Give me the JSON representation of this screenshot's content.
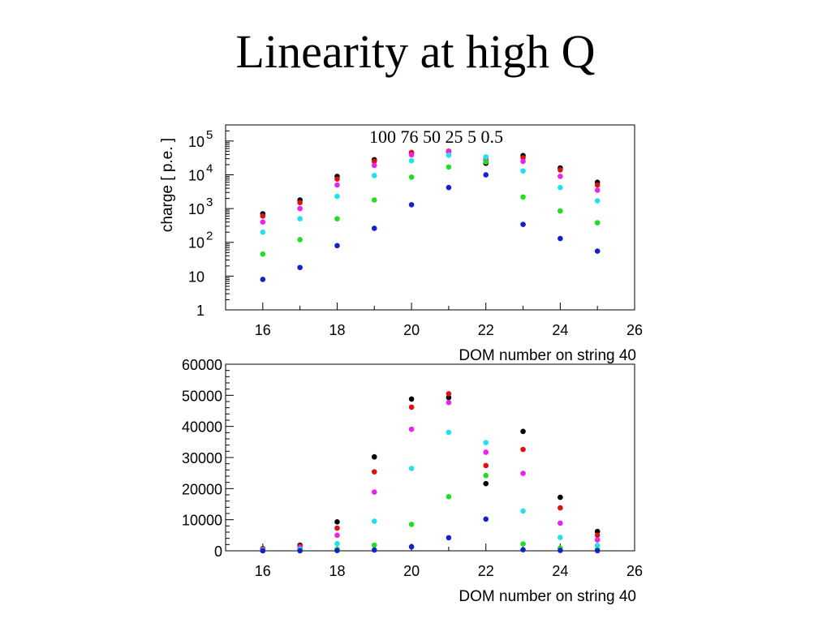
{
  "slide": {
    "title": "Linearity at high Q"
  },
  "chart_data": [
    {
      "type": "scatter",
      "yscale": "log",
      "ylabel": "charge [ p.e. ]",
      "xlabel": "DOM number on string 40",
      "annotation": "100 76 50 25 5 0.5",
      "xlim": [
        15,
        26
      ],
      "ylim": [
        1,
        300000
      ],
      "xticks": [
        "16",
        "18",
        "20",
        "22",
        "24",
        "26"
      ],
      "xtick_values": [
        16,
        18,
        20,
        22,
        24,
        26
      ],
      "ytick_values": [
        1,
        10,
        100,
        1000,
        10000,
        100000
      ],
      "yticks": [
        {
          "base": "1",
          "exp": ""
        },
        {
          "base": "10",
          "exp": ""
        },
        {
          "base": "10",
          "exp": "2"
        },
        {
          "base": "10",
          "exp": "3"
        },
        {
          "base": "10",
          "exp": "4"
        },
        {
          "base": "10",
          "exp": "5"
        }
      ],
      "x": [
        16,
        17,
        18,
        19,
        20,
        21,
        22,
        23,
        24,
        25
      ],
      "series": [
        {
          "color": "#000000",
          "values": [
            700,
            1800,
            9000,
            28000,
            45000,
            48000,
            22000,
            37000,
            16000,
            6000
          ]
        },
        {
          "color": "#dd1111",
          "values": [
            600,
            1500,
            7500,
            25000,
            46000,
            50000,
            27000,
            32000,
            14000,
            5000
          ]
        },
        {
          "color": "#ee22ee",
          "values": [
            400,
            1000,
            5000,
            19000,
            39000,
            48000,
            31000,
            25000,
            9000,
            3500
          ]
        },
        {
          "color": "#22e0f0",
          "values": [
            200,
            500,
            2300,
            9500,
            26000,
            38000,
            34000,
            13000,
            4200,
            1700
          ]
        },
        {
          "color": "#22dd22",
          "values": [
            45,
            120,
            500,
            1800,
            8500,
            17000,
            24000,
            2200,
            850,
            380
          ]
        },
        {
          "color": "#1122cc",
          "values": [
            8,
            18,
            80,
            260,
            1300,
            4200,
            10000,
            340,
            130,
            55
          ]
        }
      ]
    },
    {
      "type": "scatter",
      "xlabel": "DOM number on string 40",
      "xlim": [
        15,
        26
      ],
      "ylim": [
        0,
        60000
      ],
      "xticks": [
        "16",
        "18",
        "20",
        "22",
        "24",
        "26"
      ],
      "xtick_values": [
        16,
        18,
        20,
        22,
        24,
        26
      ],
      "yticks": [
        "0",
        "10000",
        "20000",
        "30000",
        "40000",
        "50000",
        "60000"
      ],
      "ytick_values": [
        0,
        10000,
        20000,
        30000,
        40000,
        50000,
        60000
      ],
      "x": [
        16,
        17,
        18,
        19,
        20,
        21,
        22,
        23,
        24,
        25
      ],
      "series": [
        {
          "color": "#000000",
          "values": [
            700,
            1800,
            9300,
            30200,
            48800,
            49300,
            21600,
            38400,
            17200,
            6200
          ]
        },
        {
          "color": "#dd1111",
          "values": [
            600,
            1500,
            7300,
            25400,
            46200,
            50500,
            27400,
            32600,
            13800,
            5000
          ]
        },
        {
          "color": "#ee22ee",
          "values": [
            400,
            1000,
            5000,
            18900,
            39100,
            47700,
            31700,
            24900,
            8900,
            3500
          ]
        },
        {
          "color": "#22e0f0",
          "values": [
            200,
            500,
            2300,
            9500,
            26500,
            38100,
            34800,
            12800,
            4300,
            1700
          ]
        },
        {
          "color": "#22dd22",
          "values": [
            45,
            120,
            500,
            1800,
            8500,
            17400,
            24200,
            2200,
            850,
            380
          ]
        },
        {
          "color": "#1122cc",
          "values": [
            8,
            18,
            80,
            260,
            1300,
            4200,
            10200,
            340,
            130,
            55
          ]
        }
      ]
    }
  ]
}
